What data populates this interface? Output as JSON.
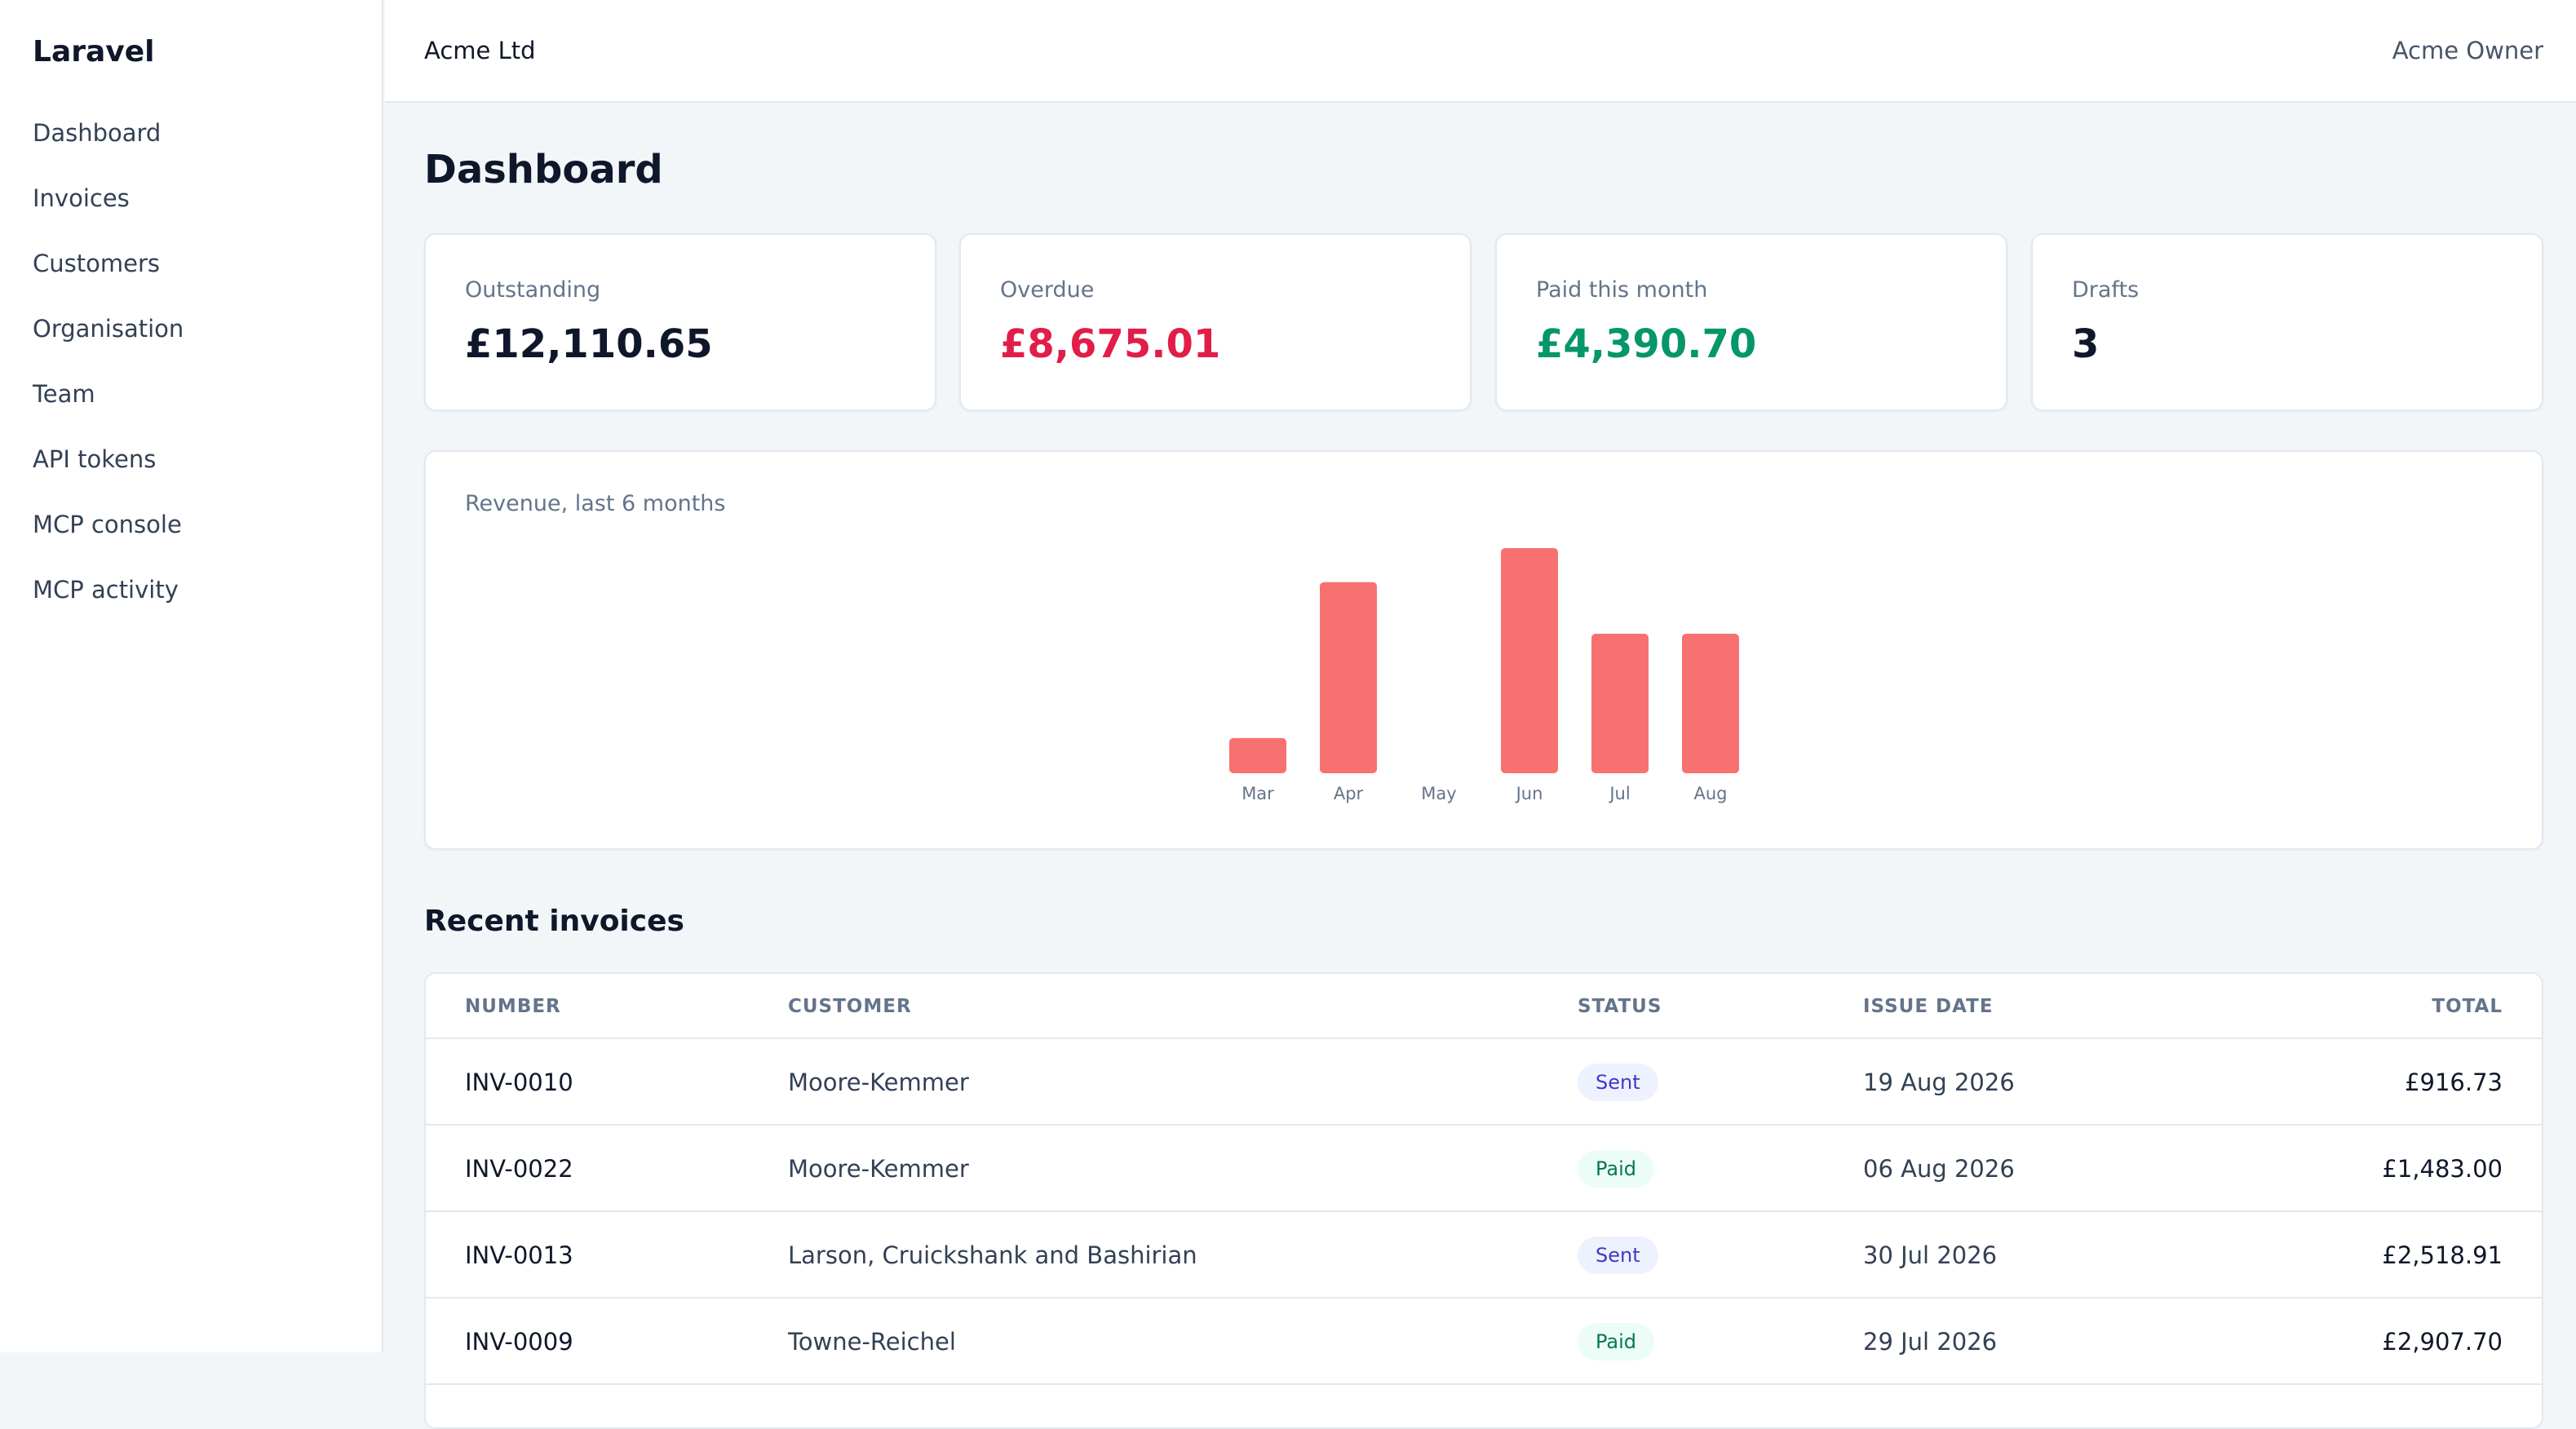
{
  "sidebar": {
    "brand": "Laravel",
    "items": [
      {
        "label": "Dashboard",
        "name": "sidebar-item-dashboard"
      },
      {
        "label": "Invoices",
        "name": "sidebar-item-invoices"
      },
      {
        "label": "Customers",
        "name": "sidebar-item-customers"
      },
      {
        "label": "Organisation",
        "name": "sidebar-item-organisation"
      },
      {
        "label": "Team",
        "name": "sidebar-item-team"
      },
      {
        "label": "API tokens",
        "name": "sidebar-item-api-tokens"
      },
      {
        "label": "MCP console",
        "name": "sidebar-item-mcp-console"
      },
      {
        "label": "MCP activity",
        "name": "sidebar-item-mcp-activity"
      }
    ]
  },
  "header": {
    "org": "Acme Ltd",
    "user": "Acme Owner"
  },
  "main": {
    "title": "Dashboard",
    "stats": [
      {
        "label": "Outstanding",
        "value": "£12,110.65",
        "color": "#0f172a"
      },
      {
        "label": "Overdue",
        "value": "£8,675.01",
        "color": "#e11d48"
      },
      {
        "label": "Paid this month",
        "value": "£4,390.70",
        "color": "#059669"
      },
      {
        "label": "Drafts",
        "value": "3",
        "color": "#0f172a"
      }
    ],
    "chart_title": "Revenue, last 6 months",
    "recent_title": "Recent invoices",
    "table": {
      "headers": {
        "number": "NUMBER",
        "customer": "CUSTOMER",
        "status": "STATUS",
        "issue_date": "ISSUE DATE",
        "total": "TOTAL"
      },
      "rows": [
        {
          "number": "INV-0010",
          "customer": "Moore-Kemmer",
          "status": "Sent",
          "status_kind": "sent",
          "date": "19 Aug 2026",
          "total": "£916.73"
        },
        {
          "number": "INV-0022",
          "customer": "Moore-Kemmer",
          "status": "Paid",
          "status_kind": "paid",
          "date": "06 Aug 2026",
          "total": "£1,483.00"
        },
        {
          "number": "INV-0013",
          "customer": "Larson, Cruickshank and Bashirian",
          "status": "Sent",
          "status_kind": "sent",
          "date": "30 Jul 2026",
          "total": "£2,518.91"
        },
        {
          "number": "INV-0009",
          "customer": "Towne-Reichel",
          "status": "Paid",
          "status_kind": "paid",
          "date": "29 Jul 2026",
          "total": "£2,907.70"
        }
      ]
    }
  },
  "chart_data": {
    "type": "bar",
    "categories": [
      "Mar",
      "Apr",
      "May",
      "Jun",
      "Jul",
      "Aug"
    ],
    "values": [
      640,
      3480,
      0,
      4100,
      2540,
      2540
    ],
    "title": "Revenue, last 6 months",
    "xlabel": "",
    "ylabel": "",
    "ylim": [
      0,
      4100
    ],
    "grid": false,
    "bar_color": "#f87171"
  }
}
